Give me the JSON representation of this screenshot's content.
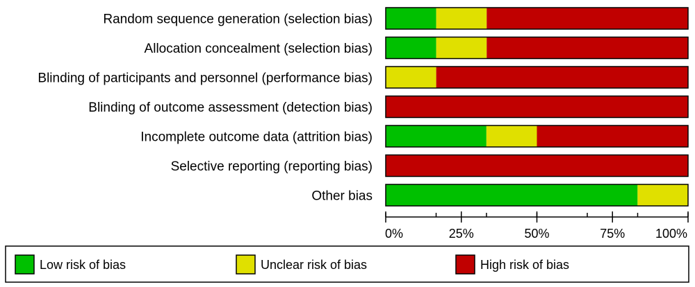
{
  "chart_data": {
    "type": "bar",
    "stacked": true,
    "orientation": "horizontal",
    "categories": [
      "Random sequence generation (selection bias)",
      "Allocation concealment (selection bias)",
      "Blinding of participants and personnel (performance bias)",
      "Blinding of outcome assessment (detection bias)",
      "Incomplete outcome data (attrition bias)",
      "Selective reporting (reporting bias)",
      "Other bias"
    ],
    "series": [
      {
        "name": "Low risk of bias",
        "color": "#00c000",
        "values": [
          16.7,
          16.7,
          0,
          0,
          33.3,
          0,
          83.3
        ]
      },
      {
        "name": "Unclear risk of bias",
        "color": "#e0e000",
        "values": [
          16.7,
          16.7,
          16.7,
          0,
          16.7,
          0,
          16.7
        ]
      },
      {
        "name": "High risk of bias",
        "color": "#c00000",
        "values": [
          66.6,
          66.6,
          83.3,
          100,
          50,
          100,
          0
        ]
      }
    ],
    "xlim": [
      0,
      100
    ],
    "ticks": [
      0,
      25,
      50,
      75,
      100
    ],
    "tick_labels": [
      "0%",
      "25%",
      "50%",
      "75%",
      "100%"
    ],
    "legend": "bottom"
  }
}
